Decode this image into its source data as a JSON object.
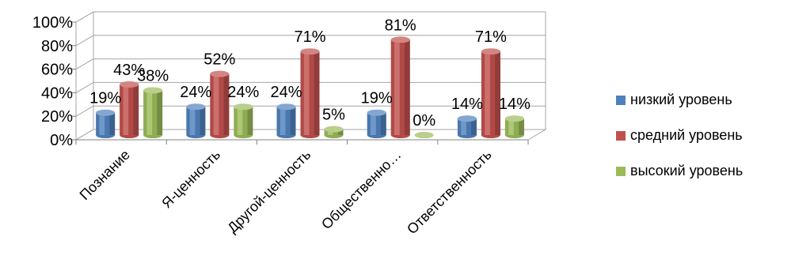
{
  "chart_data": {
    "type": "bar",
    "style": "3d-cylinder",
    "categories": [
      "Познание",
      "Я-ценность",
      "Другой-ценность",
      "Общественно…",
      "Ответственность"
    ],
    "series": [
      {
        "name": "низкий уровень",
        "color": "#4F81BD",
        "values": [
          19,
          24,
          24,
          19,
          14
        ]
      },
      {
        "name": "средний уровень",
        "color": "#C0504D",
        "values": [
          43,
          52,
          71,
          81,
          71
        ]
      },
      {
        "name": "высокий уровень",
        "color": "#9BBB59",
        "values": [
          38,
          24,
          5,
          0,
          14
        ]
      }
    ],
    "data_labels": [
      [
        "19%",
        "24%",
        "24%",
        "19%",
        "14%"
      ],
      [
        "43%",
        "52%",
        "71%",
        "81%",
        "71%"
      ],
      [
        "38%",
        "24%",
        "5%",
        "0%",
        "14%"
      ]
    ],
    "y_ticks": [
      "0%",
      "20%",
      "40%",
      "60%",
      "80%",
      "100%"
    ],
    "ylim": [
      0,
      100
    ],
    "grid": true,
    "legend_position": "right"
  }
}
